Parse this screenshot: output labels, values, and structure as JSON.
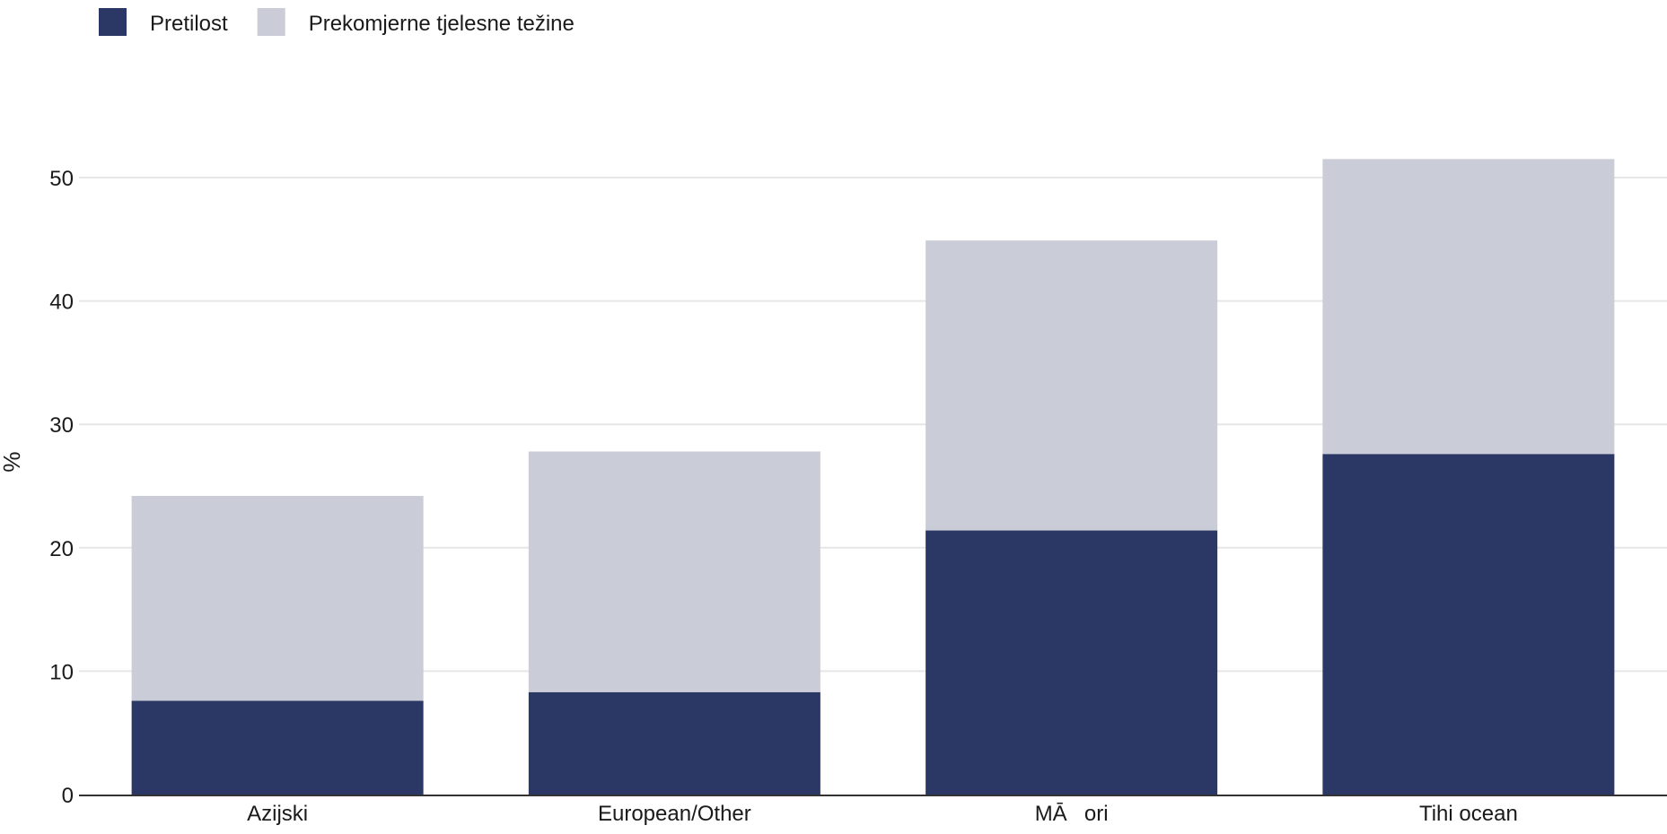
{
  "chart_data": {
    "type": "bar",
    "stacked": true,
    "categories": [
      "Azijski",
      "European/Other",
      "MĀori",
      "Tihi ocean"
    ],
    "series": [
      {
        "name": "Pretilost",
        "values": [
          7.6,
          8.3,
          21.4,
          27.6
        ],
        "color": "#2b3764"
      },
      {
        "name": "Prekomjerne tjelesne težine",
        "values": [
          16.6,
          19.5,
          23.5,
          23.9
        ],
        "color": "#caccd8"
      }
    ],
    "title": "",
    "xlabel": "",
    "ylabel": "%",
    "ylim": [
      0,
      55
    ],
    "yticks": [
      0,
      10,
      20,
      30,
      40,
      50
    ],
    "grid": true,
    "legend_position": "top-left",
    "colors": {
      "gridline": "#e6e6e6",
      "axis": "#333333",
      "text": "#1a1a1a"
    }
  }
}
